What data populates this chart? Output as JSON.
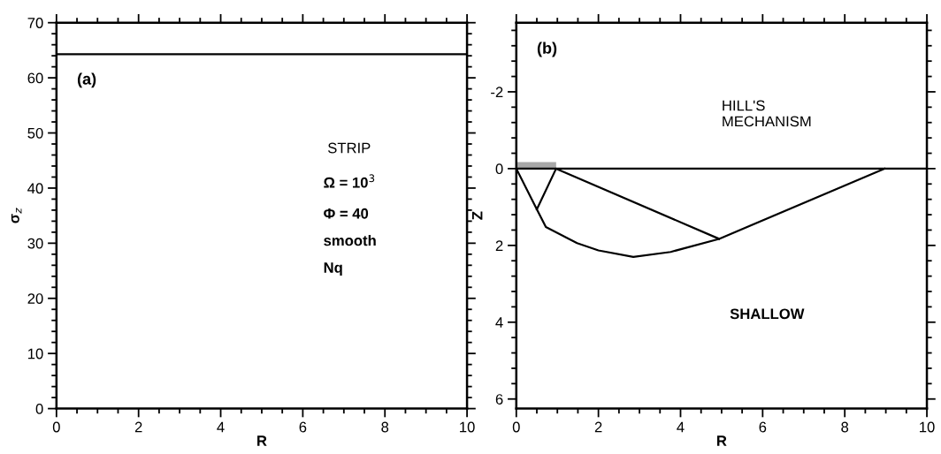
{
  "chart_data": [
    {
      "type": "line",
      "xlabel": "R",
      "ylabel": "σ$_{z}$",
      "xlim": [
        0,
        10
      ],
      "ylim": [
        0,
        70
      ],
      "xticks": [
        0,
        2,
        4,
        6,
        8,
        10
      ],
      "yticks": [
        0,
        10,
        20,
        30,
        40,
        50,
        60,
        70
      ],
      "series": [
        {
          "color": "#000000",
          "x": [
            0,
            10
          ],
          "values": [
            64.3,
            64.3
          ]
        }
      ],
      "annotations": [
        "(a)",
        "STRIP",
        "Ω = 10$^{3}$",
        "Φ = 40",
        "smooth",
        "Nq"
      ],
      "grid": false,
      "legend": false,
      "marker": "none",
      "line_style": "solid"
    },
    {
      "type": "line",
      "xlabel": "R",
      "ylabel": "Z",
      "xlim": [
        0,
        10
      ],
      "ylim": [
        6.25,
        -3.8
      ],
      "xticks": [
        0,
        2,
        4,
        6,
        8,
        10
      ],
      "yticks": [
        -2,
        0,
        2,
        4,
        6
      ],
      "series": [
        {
          "type": "area",
          "color": "#a8a8a8",
          "x": [
            0,
            0.97
          ],
          "values": [
            -0.17,
            -0.17
          ]
        },
        {
          "color": "#000000",
          "x": [
            0,
            10
          ],
          "values": [
            0,
            0
          ]
        },
        {
          "color": "#000000",
          "x": [
            0,
            0.5,
            0.72,
            1.48,
            2.0,
            2.85,
            3.76,
            4.94,
            8.97
          ],
          "values": [
            0,
            1.06,
            1.52,
            1.94,
            2.13,
            2.3,
            2.17,
            1.83,
            0
          ]
        },
        {
          "color": "#000000",
          "x": [
            0.5,
            0.97,
            4.94
          ],
          "values": [
            1.06,
            0,
            1.83
          ]
        }
      ],
      "annotations": [
        "(b)",
        "HILL'S\nMECHANISM",
        "SHALLOW"
      ],
      "grid": false,
      "legend": false,
      "marker": "none",
      "line_style": "solid"
    }
  ]
}
